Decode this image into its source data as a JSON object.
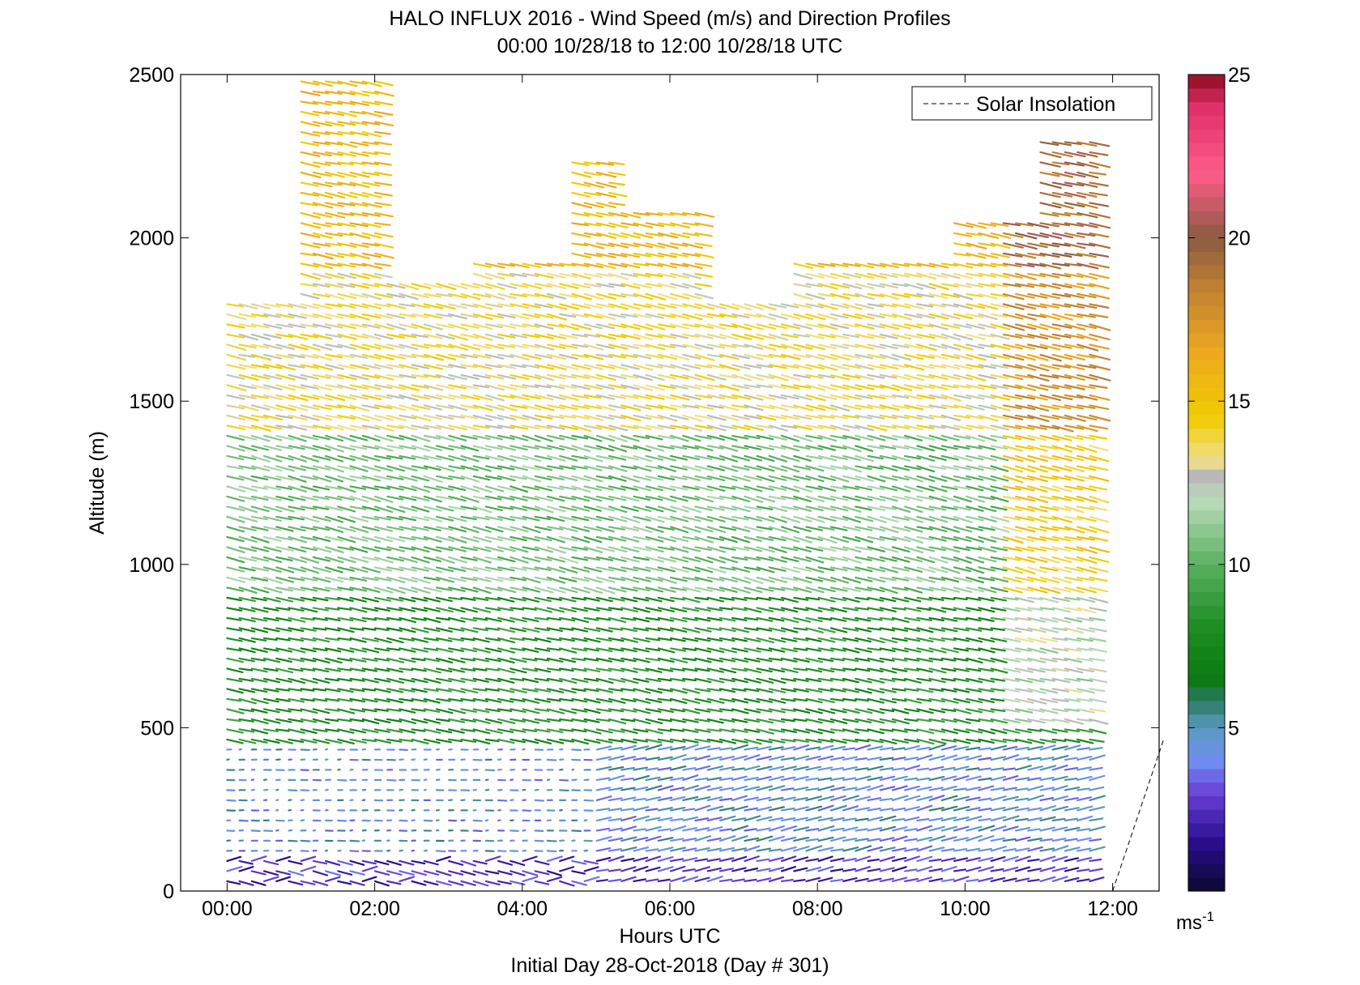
{
  "chart_data": {
    "type": "scatter",
    "title": "HALO INFLUX 2016 - Wind Speed (m/s) and Direction Profiles",
    "subtitle": "00:00 10/28/18 to 12:00 10/28/18  UTC",
    "xlabel": "Hours UTC",
    "ylabel": "Altitude (m)",
    "footer": "Initial Day 28-Oct-2018 (Day # 301)",
    "xlim": [
      -0.63,
      12.63
    ],
    "ylim": [
      0,
      2500
    ],
    "x_ticks": [
      {
        "value": 0,
        "label": "00:00"
      },
      {
        "value": 2,
        "label": "02:00"
      },
      {
        "value": 4,
        "label": "04:00"
      },
      {
        "value": 6,
        "label": "06:00"
      },
      {
        "value": 8,
        "label": "08:00"
      },
      {
        "value": 10,
        "label": "10:00"
      },
      {
        "value": 12,
        "label": "12:00"
      }
    ],
    "y_ticks": [
      {
        "value": 0,
        "label": "0"
      },
      {
        "value": 500,
        "label": "500"
      },
      {
        "value": 1000,
        "label": "1000"
      },
      {
        "value": 1500,
        "label": "1500"
      },
      {
        "value": 2000,
        "label": "2000"
      },
      {
        "value": 2500,
        "label": "2500"
      }
    ],
    "legend": {
      "label": "Solar Insolation",
      "placement": "top-right",
      "line_style": "dashed"
    },
    "solar_insolation_line": [
      {
        "x": 12.0,
        "y": 0
      },
      {
        "x": 12.7,
        "y": 470
      }
    ],
    "colorbar": {
      "min": 0,
      "max": 25,
      "ticks": [
        {
          "value": 5,
          "label": "5"
        },
        {
          "value": 10,
          "label": "10"
        },
        {
          "value": 15,
          "label": "15"
        },
        {
          "value": 20,
          "label": "20"
        },
        {
          "value": 25,
          "label": "25"
        }
      ],
      "unit_label": "ms",
      "unit_superscript": "-1",
      "stops": [
        {
          "v": 0,
          "color": "#0a0a30"
        },
        {
          "v": 1.5,
          "color": "#2a0d8e"
        },
        {
          "v": 3.0,
          "color": "#6a3fd6"
        },
        {
          "v": 4.0,
          "color": "#6e8ff0"
        },
        {
          "v": 5.0,
          "color": "#5a9ac0"
        },
        {
          "v": 5.8,
          "color": "#2f7a68"
        },
        {
          "v": 6.5,
          "color": "#0a7a10"
        },
        {
          "v": 8.0,
          "color": "#1a8c20"
        },
        {
          "v": 10.0,
          "color": "#5ab060"
        },
        {
          "v": 12.0,
          "color": "#bcdcbc"
        },
        {
          "v": 12.7,
          "color": "#b8b8b8"
        },
        {
          "v": 13.2,
          "color": "#f1e08a"
        },
        {
          "v": 14.5,
          "color": "#f0cc00"
        },
        {
          "v": 16.5,
          "color": "#eea820"
        },
        {
          "v": 18.5,
          "color": "#c08030"
        },
        {
          "v": 20.0,
          "color": "#8a5a42"
        },
        {
          "v": 22.0,
          "color": "#ff5c8a"
        },
        {
          "v": 24.0,
          "color": "#e0306a"
        },
        {
          "v": 25.0,
          "color": "#8a0d20"
        }
      ]
    },
    "profiles": {
      "time_start": 0.0,
      "time_end": 11.83,
      "time_step": 0.167,
      "altitude_step": 31,
      "note_layers": [
        {
          "alt_from": 0,
          "alt_to": 100,
          "speed": 2.5,
          "direction_deg": 100
        },
        {
          "alt_from": 100,
          "alt_to": 450,
          "speed": 4.5,
          "direction_deg": 160
        },
        {
          "alt_from": 450,
          "alt_to": 900,
          "speed": 8.0,
          "direction_deg": 115
        },
        {
          "alt_from": 900,
          "alt_to": 1400,
          "speed": 10.5,
          "direction_deg": 105
        },
        {
          "alt_from": 1400,
          "alt_to": 1900,
          "speed": 13.5,
          "direction_deg": 110
        },
        {
          "alt_from": 1900,
          "alt_to": 2500,
          "speed": 15.5,
          "direction_deg": 115
        }
      ]
    }
  }
}
